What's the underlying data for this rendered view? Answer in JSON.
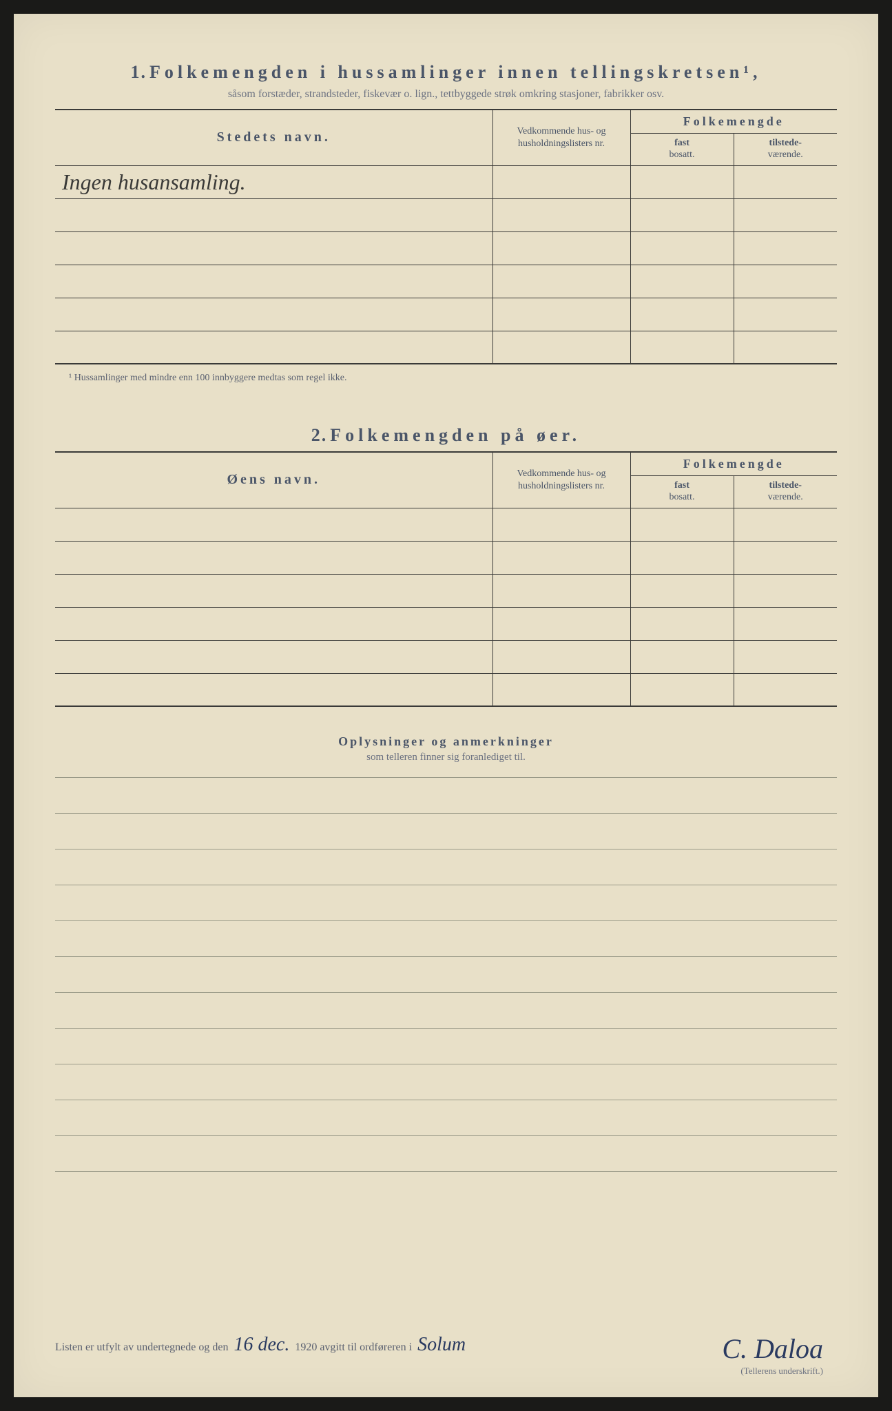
{
  "section1": {
    "number": "1.",
    "title": "Folkemengden i hussamlinger innen tellingskretsen¹,",
    "subtitle": "såsom forstæder, strandsteder, fiskevær o. lign., tettbyggede strøk omkring stasjoner, fabrikker osv.",
    "col_name": "Stedets navn.",
    "col_list": "Vedkommende hus- og husholdningslisters nr.",
    "col_folk": "Folkemengde",
    "col_fast_a": "fast",
    "col_fast_b": "bosatt.",
    "col_til_a": "tilstede-",
    "col_til_b": "værende.",
    "entry": "Ingen husansamling.",
    "footnote": "¹ Hussamlinger med mindre enn 100 innbyggere medtas som regel ikke."
  },
  "section2": {
    "number": "2.",
    "title": "Folkemengden på øer.",
    "col_name": "Øens navn.",
    "col_list": "Vedkommende hus- og husholdningslisters nr.",
    "col_folk": "Folkemengde",
    "col_fast_a": "fast",
    "col_fast_b": "bosatt.",
    "col_til_a": "tilstede-",
    "col_til_b": "værende."
  },
  "section3": {
    "title": "Oplysninger og anmerkninger",
    "subtitle": "som telleren finner sig foranlediget til."
  },
  "footer": {
    "printed1": "Listen er utfylt av undertegnede og den",
    "date": "16 dec.",
    "printed2": "1920 avgitt til ordføreren i",
    "place": "Solum",
    "signature": "C. Daloa",
    "sig_label": "(Tellerens underskrift.)"
  },
  "colors": {
    "paper": "#e8e0c8",
    "ink_print": "#4a5568",
    "ink_hand": "#2a3a60",
    "border": "#3a3a38"
  }
}
